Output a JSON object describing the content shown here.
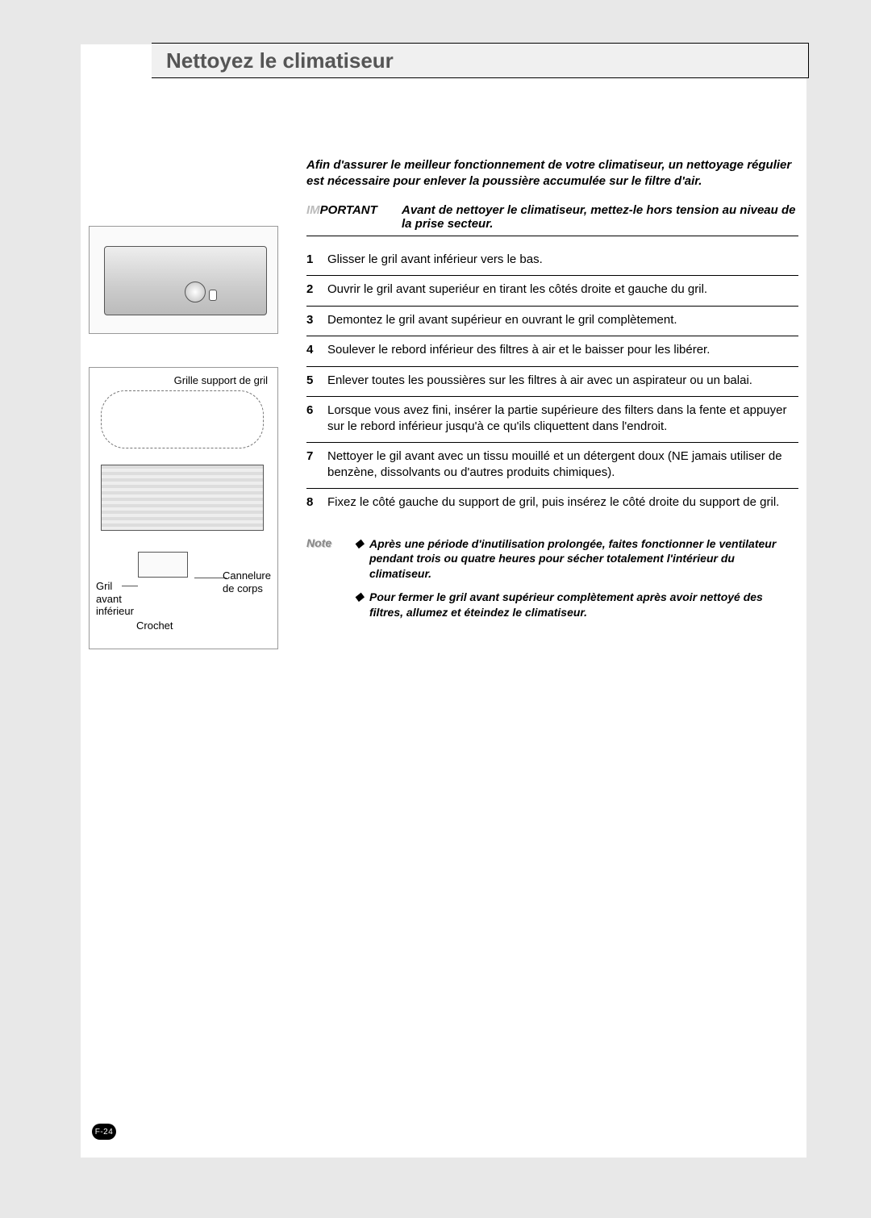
{
  "title": "Nettoyez le climatiseur",
  "intro": "Afin d'assurer le meilleur fonctionnement de votre climatiseur, un nettoyage régulier est nécessaire pour enlever la poussière accumulée sur le filtre d'air.",
  "important": {
    "prefix_faded": "IM",
    "label": "PORTANT",
    "text": "Avant de nettoyer le climatiseur, mettez-le hors tension au niveau de la prise secteur."
  },
  "steps": [
    {
      "n": "1",
      "t": "Glisser le gril avant inférieur vers le bas."
    },
    {
      "n": "2",
      "t": "Ouvrir le gril avant superiéur en tirant les côtés droite et gauche du gril."
    },
    {
      "n": "3",
      "t": "Demontez le gril avant supérieur en ouvrant le gril complètement."
    },
    {
      "n": "4",
      "t": "Soulever le rebord inférieur des filtres à air et le baisser pour les libérer."
    },
    {
      "n": "5",
      "t": "Enlever toutes les poussières sur les filtres à air avec un aspirateur ou un balai."
    },
    {
      "n": "6",
      "t": "Lorsque vous avez fini, insérer la partie supérieure des filters dans la fente et appuyer sur le rebord inférieur jusqu'à ce qu'ils cliquettent dans l'endroit."
    },
    {
      "n": "7",
      "t": "Nettoyer le gil avant avec un tissu mouillé et un détergent doux (NE jamais utiliser de benzène, dissolvants ou d'autres produits chimiques)."
    },
    {
      "n": "8",
      "t": "Fixez le côté gauche du support de gril, puis insérez le côté droite du support de gril."
    }
  ],
  "note": {
    "label": "Note",
    "bullet": "◆",
    "items": [
      "Après une période d'inutilisation prolongée, faites fonctionner le ventilateur pendant trois ou quatre heures pour sécher totalement l'intérieur du climatiseur.",
      "Pour fermer le gril avant supérieur complètement après avoir nettoyé des filtres, allumez et éteindez le climatiseur."
    ]
  },
  "figure2_labels": {
    "top": "Grille support de gril",
    "gril": "Gril\navant\ninférieur",
    "crochet": "Crochet",
    "cannelure": "Cannelure\nde corps"
  },
  "page_number": "F-24",
  "colors": {
    "page_bg": "#e8e8e8",
    "paper_bg": "#ffffff",
    "title_bg": "#f0f0f0",
    "title_text": "#555555",
    "important_faded": "#bbbbbb",
    "note_label": "#888888",
    "rule": "#000000",
    "thin_rule": "#999999"
  },
  "typography": {
    "title_fontsize": 26,
    "body_fontsize": 15,
    "note_fontsize": 14,
    "label_fontsize": 13,
    "pagenum_fontsize": 10
  }
}
